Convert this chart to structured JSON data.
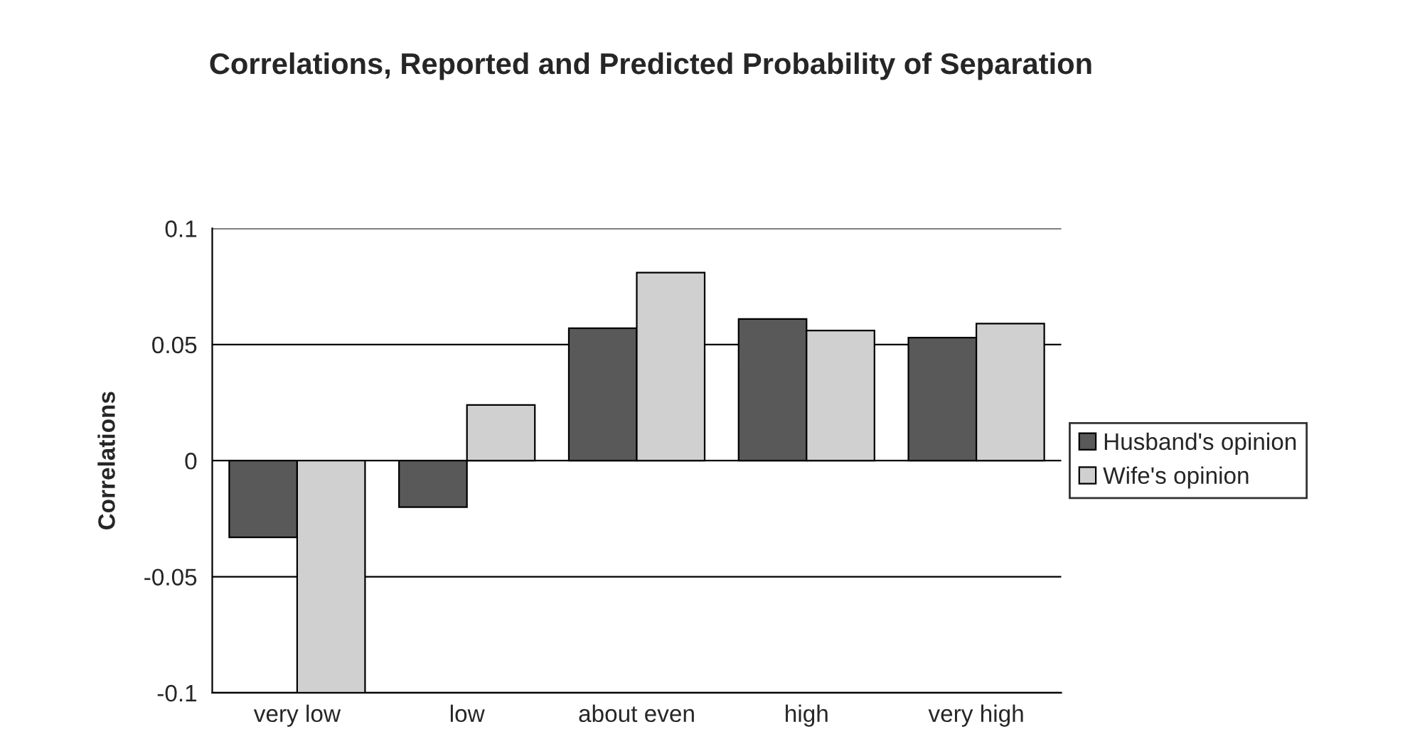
{
  "chart_data": {
    "type": "bar",
    "title": "Correlations, Reported and Predicted Probability of Separation",
    "ylabel": "Correlations",
    "categories": [
      "very low",
      "low",
      "about even",
      "high",
      "very high"
    ],
    "series": [
      {
        "name": "Husband's opinion",
        "color": "#595959",
        "values": [
          -0.033,
          -0.02,
          0.057,
          0.061,
          0.053
        ]
      },
      {
        "name": "Wife's opinion",
        "color": "#d0d0d0",
        "values": [
          -0.1,
          0.024,
          0.081,
          0.056,
          0.059
        ]
      }
    ],
    "ylim": [
      -0.1,
      0.1
    ],
    "yticks": [
      {
        "value": -0.1,
        "label": "-0.1"
      },
      {
        "value": -0.05,
        "label": "-0.05"
      },
      0,
      0.05,
      0.1
    ],
    "grid": "y",
    "legend": "right"
  }
}
